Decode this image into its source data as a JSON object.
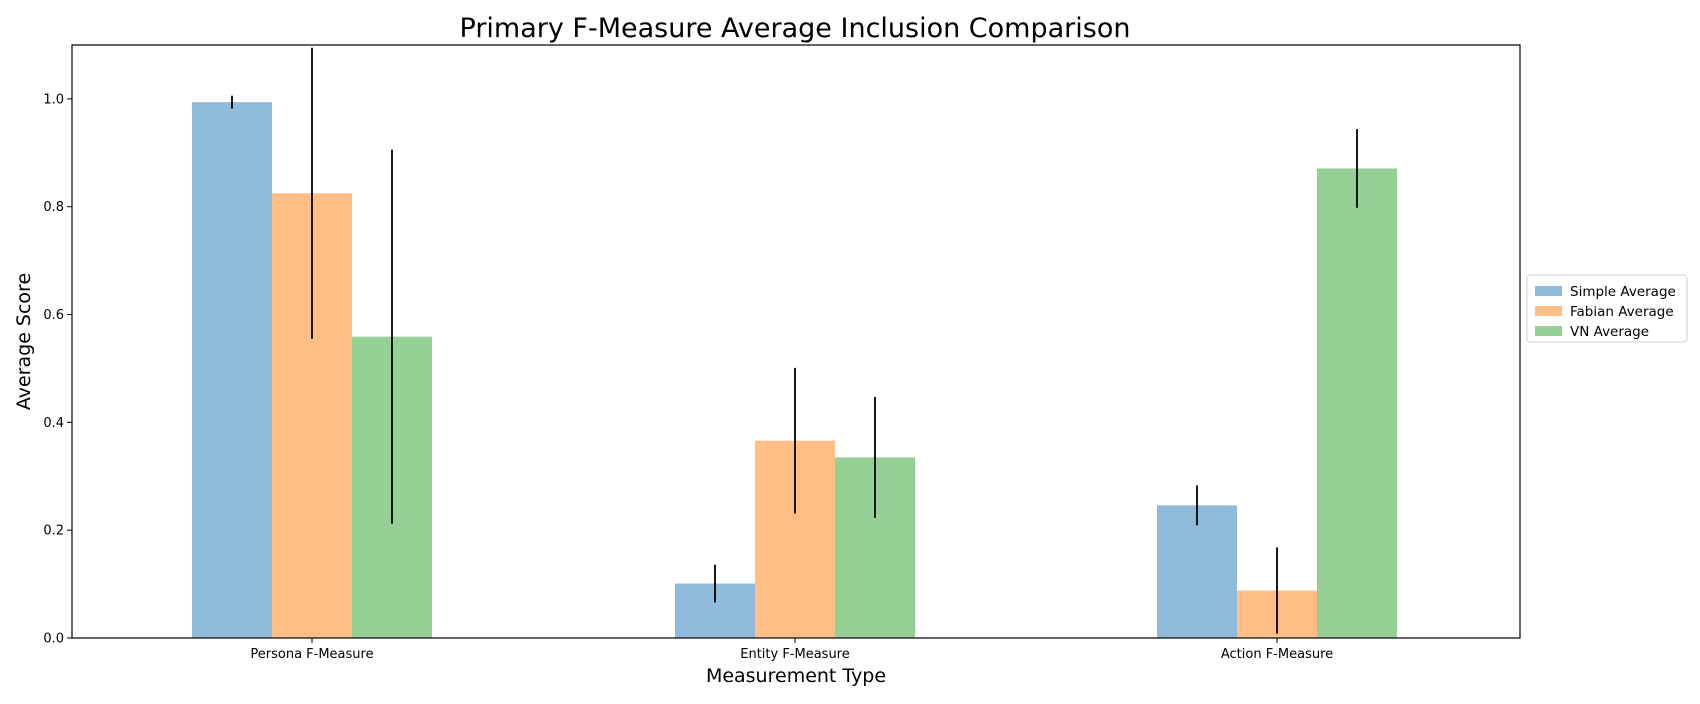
{
  "chart_data": {
    "type": "bar",
    "title": "Primary F-Measure Average Inclusion Comparison",
    "xlabel": "Measurement Type",
    "ylabel": "Average Score",
    "categories": [
      "Persona F-Measure",
      "Entity F-Measure",
      "Action F-Measure"
    ],
    "ylim": [
      0,
      1.1
    ],
    "yticks": [
      "0.0",
      "0.2",
      "0.4",
      "0.6",
      "0.8",
      "1.0"
    ],
    "legend_position": "center-right-outside",
    "grid": false,
    "series": [
      {
        "name": "Simple Average",
        "color": "#8fbad9",
        "values": [
          0.994,
          0.101,
          0.246
        ],
        "errors": [
          0.012,
          0.035,
          0.037
        ]
      },
      {
        "name": "Fabian Average",
        "color": "#ffbe86",
        "values": [
          0.825,
          0.366,
          0.088
        ],
        "errors": [
          0.27,
          0.135,
          0.08
        ]
      },
      {
        "name": "VN Average",
        "color": "#95cf95",
        "values": [
          0.559,
          0.335,
          0.871
        ],
        "errors": [
          0.347,
          0.112,
          0.073
        ]
      }
    ]
  }
}
